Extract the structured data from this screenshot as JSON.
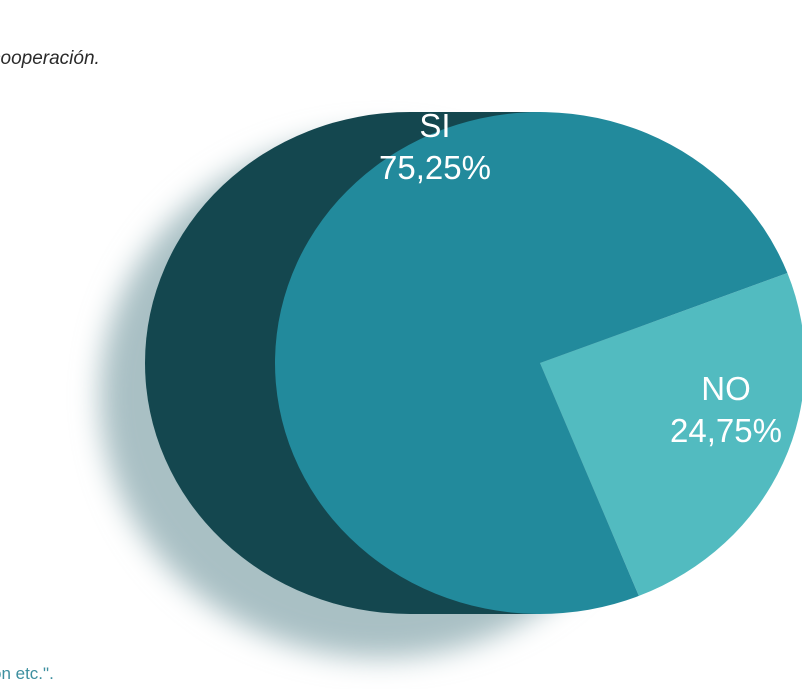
{
  "page": {
    "top_text": "cooperación.",
    "bottom_text": "ón etc.\"."
  },
  "colors": {
    "si": "#228a9c",
    "no": "#52bbc0",
    "side": "#14474f",
    "shadow": "#a9c0c4",
    "label": "#ffffff",
    "bottom_text": "#3d8f9f"
  },
  "chart_data": {
    "type": "pie",
    "title": "",
    "slices": [
      {
        "label": "SI",
        "value_label": "75,25%",
        "value": 75.25
      },
      {
        "label": "NO",
        "value_label": "24,75%",
        "value": 24.75
      }
    ],
    "legend": "none",
    "style": "3d-cylinder"
  }
}
